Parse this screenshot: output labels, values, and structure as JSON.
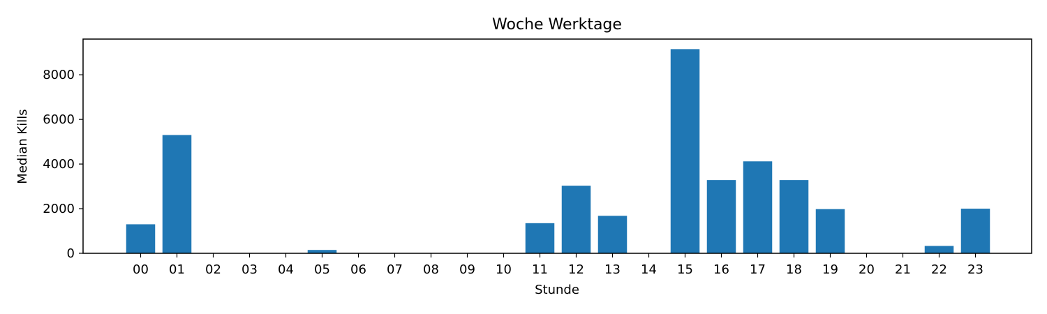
{
  "chart_data": {
    "type": "bar",
    "title": "Woche Werktage",
    "xlabel": "Stunde",
    "ylabel": "Median Kills",
    "categories": [
      "00",
      "01",
      "02",
      "03",
      "04",
      "05",
      "06",
      "07",
      "08",
      "09",
      "10",
      "11",
      "12",
      "13",
      "14",
      "15",
      "16",
      "17",
      "18",
      "19",
      "20",
      "21",
      "22",
      "23"
    ],
    "values": [
      1300,
      5300,
      0,
      0,
      0,
      150,
      0,
      0,
      0,
      0,
      0,
      1350,
      3030,
      1680,
      0,
      9150,
      3280,
      4120,
      3280,
      1980,
      0,
      0,
      330,
      2000
    ],
    "ylim": [
      0,
      9600
    ],
    "yticks": [
      0,
      2000,
      4000,
      6000,
      8000
    ],
    "grid": false,
    "legend": "none",
    "bar_color": "#1f77b4"
  }
}
